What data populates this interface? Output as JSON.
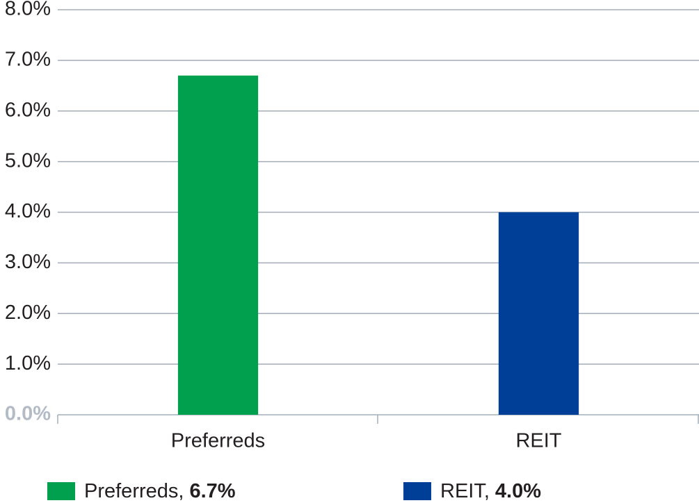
{
  "chart_data": {
    "type": "bar",
    "categories": [
      "Preferreds",
      "REIT"
    ],
    "values": [
      6.7,
      4.0
    ],
    "value_labels": [
      "6.7%",
      "4.0%"
    ],
    "colors": [
      "#00a04f",
      "#003f98"
    ],
    "legend_labels": [
      "Preferreds,",
      "REIT,"
    ],
    "ylim": [
      0,
      8
    ],
    "yticks": [
      {
        "value": 0,
        "label": "0.0%"
      },
      {
        "value": 1,
        "label": "1.0%"
      },
      {
        "value": 2,
        "label": "2.0%"
      },
      {
        "value": 3,
        "label": "3.0%"
      },
      {
        "value": 4,
        "label": "4.0%"
      },
      {
        "value": 5,
        "label": "5.0%"
      },
      {
        "value": 6,
        "label": "6.0%"
      },
      {
        "value": 7,
        "label": "7.0%"
      },
      {
        "value": 8,
        "label": "8.0%"
      }
    ],
    "grid": true
  }
}
